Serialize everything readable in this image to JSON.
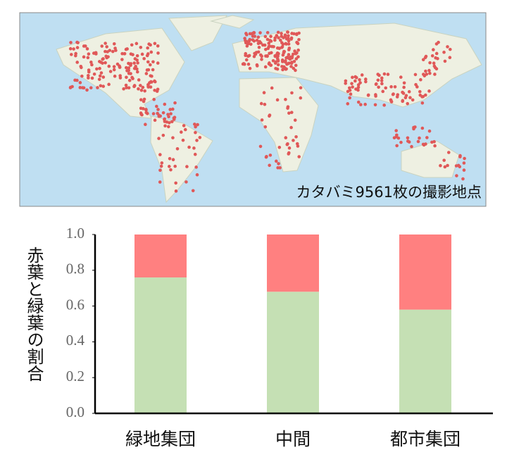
{
  "map": {
    "caption": "カタバミ9561枚の撮影地点"
  },
  "chart_data": {
    "type": "stacked_bar",
    "y_label": "赤葉と緑葉の割合",
    "categories": [
      "緑地集団",
      "中間",
      "都市集団"
    ],
    "series": [
      {
        "color": "#c5e0b4",
        "values": [
          0.76,
          0.68,
          0.58
        ]
      },
      {
        "color": "#ff8080",
        "values": [
          0.24,
          0.32,
          0.42
        ]
      }
    ],
    "ylim": [
      0,
      1
    ],
    "yticks": [
      {
        "value": 0,
        "label": "0.0"
      },
      0.2,
      0.4,
      0.6,
      0.8,
      {
        "value": 1,
        "label": "1.0"
      }
    ]
  }
}
